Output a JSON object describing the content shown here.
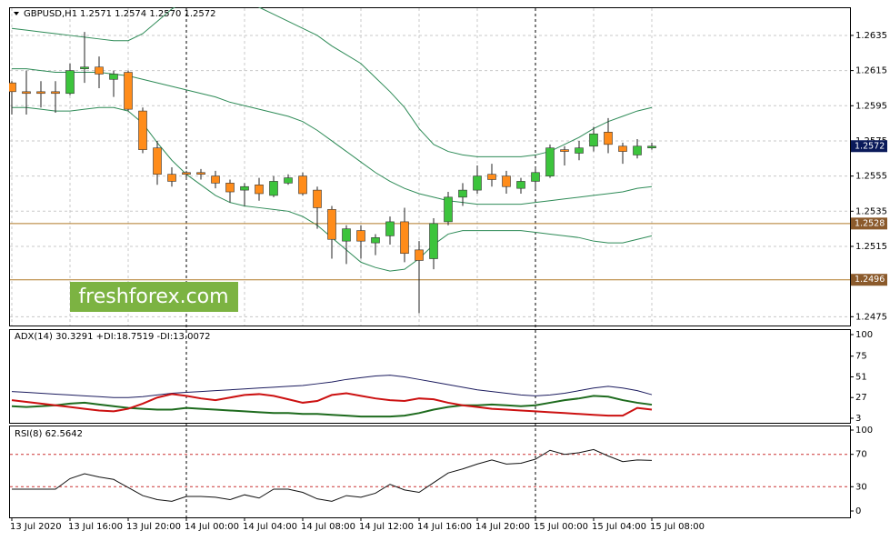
{
  "chart_data": [
    {
      "type": "candlestick",
      "title": "GBPUSD,H1",
      "subtitle": "1.2571 1.2574 1.2570 1.2572",
      "watermark": "freshforex.com",
      "categories": [
        "13 Jul 2020",
        null,
        null,
        null,
        "13 Jul 16:00",
        null,
        null,
        null,
        "13 Jul 20:00",
        null,
        null,
        null,
        "14 Jul 00:00",
        null,
        null,
        null,
        "14 Jul 04:00",
        null,
        null,
        null,
        "14 Jul 08:00",
        null,
        null,
        null,
        "14 Jul 12:00",
        null,
        null,
        null,
        "14 Jul 16:00",
        null,
        null,
        null,
        "14 Jul 20:00",
        null,
        null,
        null,
        "15 Jul 00:00",
        null,
        null,
        null,
        "15 Jul 04:00",
        null,
        null,
        null,
        "15 Jul 08:00"
      ],
      "open": [
        1.2608,
        1.2603,
        1.2603,
        1.2603,
        1.2602,
        1.2616,
        1.2617,
        1.261,
        1.2614,
        1.2592,
        1.2571,
        1.2556,
        1.2557,
        1.2557,
        1.2555,
        1.2551,
        1.2547,
        1.255,
        1.2544,
        1.2551,
        1.2555,
        1.2547,
        1.2536,
        1.2518,
        1.2524,
        1.2517,
        1.2521,
        1.2529,
        1.2513,
        1.2508,
        1.2529,
        1.2543,
        1.2547,
        1.2556,
        1.2555,
        1.2548,
        1.2552,
        1.2555,
        1.257,
        1.2568,
        1.2572,
        1.258,
        1.2572,
        1.2567,
        1.2571
      ],
      "high": [
        1.2609,
        1.2615,
        1.2609,
        1.2609,
        1.2619,
        1.2637,
        1.2623,
        1.2615,
        1.2615,
        1.2594,
        1.2575,
        1.256,
        1.2558,
        1.2559,
        1.2558,
        1.2553,
        1.2551,
        1.2554,
        1.2555,
        1.2556,
        1.2557,
        1.2549,
        1.2538,
        1.2527,
        1.2527,
        1.2522,
        1.2532,
        1.2537,
        1.2518,
        1.2531,
        1.2546,
        1.2551,
        1.2561,
        1.2562,
        1.2558,
        1.2554,
        1.256,
        1.2573,
        1.2572,
        1.2575,
        1.2583,
        1.2588,
        1.2574,
        1.2576,
        1.2574
      ],
      "low": [
        1.259,
        1.259,
        1.2594,
        1.2591,
        1.2601,
        1.2608,
        1.2605,
        1.26,
        1.2592,
        1.2568,
        1.255,
        1.2549,
        1.2553,
        1.2553,
        1.2548,
        1.254,
        1.2538,
        1.2541,
        1.2543,
        1.255,
        1.2544,
        1.2525,
        1.2508,
        1.2505,
        1.2508,
        1.251,
        1.2516,
        1.2506,
        1.2477,
        1.2502,
        1.2527,
        1.2538,
        1.2545,
        1.2549,
        1.2545,
        1.2545,
        1.2547,
        1.2554,
        1.2561,
        1.2564,
        1.2569,
        1.2568,
        1.2562,
        1.2565,
        1.257
      ],
      "close": [
        1.2603,
        1.2602,
        1.2602,
        1.2602,
        1.2615,
        1.2617,
        1.2613,
        1.2613,
        1.2593,
        1.257,
        1.2556,
        1.2552,
        1.2556,
        1.2556,
        1.2551,
        1.2546,
        1.2549,
        1.2545,
        1.2552,
        1.2554,
        1.2545,
        1.2537,
        1.2519,
        1.2525,
        1.2518,
        1.252,
        1.2529,
        1.2511,
        1.2507,
        1.2528,
        1.2543,
        1.2547,
        1.2555,
        1.2553,
        1.2549,
        1.2552,
        1.2557,
        1.2571,
        1.2569,
        1.2571,
        1.2579,
        1.2573,
        1.2569,
        1.2572,
        1.2572
      ],
      "up_color": "#3cc43c",
      "down_color": "#ff8c1a",
      "overlays": [
        {
          "color": "#2e8b57",
          "values": [
            1.2639,
            1.2638,
            1.2637,
            1.2636,
            1.2635,
            1.2634,
            1.2633,
            1.2632,
            1.2632,
            1.2636,
            1.2643,
            1.265,
            1.2655,
            1.2658,
            1.2659,
            1.2658,
            1.2655,
            1.2651,
            1.2647,
            1.2643,
            1.2639,
            1.2635,
            1.2629,
            1.2624,
            1.2619,
            1.2611,
            1.2603,
            1.2594,
            1.2582,
            1.2573,
            1.2569,
            1.2567,
            1.2566,
            1.2566,
            1.2566,
            1.2566,
            1.2567,
            1.2569,
            1.2573,
            1.2577,
            1.2582,
            1.2586,
            1.2589,
            1.2592,
            1.2594
          ]
        },
        {
          "color": "#2e8b57",
          "values": [
            1.2616,
            1.2616,
            1.2615,
            1.2614,
            1.2614,
            1.2614,
            1.2614,
            1.2613,
            1.2612,
            1.261,
            1.2608,
            1.2606,
            1.2604,
            1.2602,
            1.26,
            1.2597,
            1.2595,
            1.2593,
            1.2591,
            1.2589,
            1.2586,
            1.2581,
            1.2575,
            1.2569,
            1.2563,
            1.2557,
            1.2552,
            1.2548,
            1.2545,
            1.2543,
            1.2541,
            1.254,
            1.2539,
            1.2539,
            1.2539,
            1.2539,
            1.254,
            1.2541,
            1.2542,
            1.2543,
            1.2544,
            1.2545,
            1.2546,
            1.2548,
            1.2549
          ]
        },
        {
          "color": "#2e8b57",
          "values": [
            1.2594,
            1.2594,
            1.2593,
            1.2592,
            1.2592,
            1.2593,
            1.2594,
            1.2594,
            1.2592,
            1.2585,
            1.2574,
            1.2564,
            1.2556,
            1.255,
            1.2544,
            1.254,
            1.2538,
            1.2537,
            1.2536,
            1.2535,
            1.2532,
            1.2527,
            1.252,
            1.2513,
            1.2506,
            1.2503,
            1.2501,
            1.2502,
            1.2508,
            1.2516,
            1.2522,
            1.2524,
            1.2524,
            1.2524,
            1.2524,
            1.2524,
            1.2523,
            1.2522,
            1.2521,
            1.252,
            1.2518,
            1.2517,
            1.2517,
            1.2519,
            1.2521
          ]
        }
      ],
      "hlines": [
        1.2528,
        1.2496
      ],
      "hline_color": "#b07a28",
      "hline_label_color": "#8b5a2b",
      "price_label": 1.2572,
      "price_label_color": "#0a1a5a",
      "ylim": [
        1.247,
        1.2651
      ],
      "yticks": [
        1.2475,
        1.2515,
        1.2535,
        1.2555,
        1.2575,
        1.2595,
        1.2615,
        1.2635
      ],
      "grid": true
    },
    {
      "type": "line",
      "title": "ADX(14) 30.3291 +DI:18.7519 -DI:13.0072",
      "series": [
        {
          "color": "#1b1b5e",
          "values": [
            34,
            33,
            32,
            31,
            30,
            29,
            28,
            27,
            27,
            28,
            30,
            32,
            33,
            34,
            35,
            36,
            37,
            38,
            39,
            40,
            41,
            43,
            45,
            48,
            50,
            52,
            53,
            51,
            48,
            45,
            42,
            39,
            36,
            34,
            32,
            30,
            29,
            30,
            32,
            35,
            38,
            40,
            38,
            35,
            30.3291
          ]
        },
        {
          "color": "#1e6b1e",
          "values": [
            17,
            16,
            17,
            18,
            20,
            21,
            19,
            17,
            15,
            14,
            13,
            13,
            15,
            14,
            13,
            12,
            11,
            10,
            9,
            9,
            8,
            8,
            7,
            6,
            5,
            5,
            5,
            6,
            9,
            13,
            16,
            18,
            18,
            19,
            18,
            17,
            18,
            21,
            24,
            26,
            29,
            28,
            24,
            21,
            18.7519
          ]
        },
        {
          "color": "#cc1111",
          "values": [
            24,
            22,
            20,
            18,
            16,
            14,
            12,
            11,
            14,
            20,
            27,
            31,
            29,
            26,
            24,
            27,
            30,
            31,
            29,
            25,
            21,
            23,
            30,
            32,
            29,
            26,
            24,
            23,
            26,
            25,
            21,
            18,
            16,
            14,
            13,
            12,
            11,
            10,
            9,
            8,
            7,
            6,
            6,
            15,
            13.0072
          ]
        }
      ],
      "ylim": [
        3,
        100
      ],
      "yticks": [
        3,
        27,
        51,
        75,
        100
      ]
    },
    {
      "type": "line",
      "title": "RSI(8) 62.5642",
      "series": [
        {
          "color": "#111111",
          "values": [
            27,
            27,
            27,
            27,
            40,
            46,
            42,
            39,
            29,
            19,
            14,
            12,
            18,
            18,
            17,
            14,
            20,
            16,
            27,
            27,
            23,
            15,
            12,
            19,
            17,
            22,
            33,
            26,
            23,
            35,
            47,
            52,
            58,
            63,
            58,
            59,
            64,
            75,
            70,
            72,
            76,
            68,
            61,
            63,
            62.5642
          ]
        }
      ],
      "ylim": [
        0,
        100
      ],
      "yticks": [
        0,
        30,
        70,
        100
      ],
      "levels": [
        70,
        30
      ],
      "level_color": "#cc3333"
    }
  ]
}
